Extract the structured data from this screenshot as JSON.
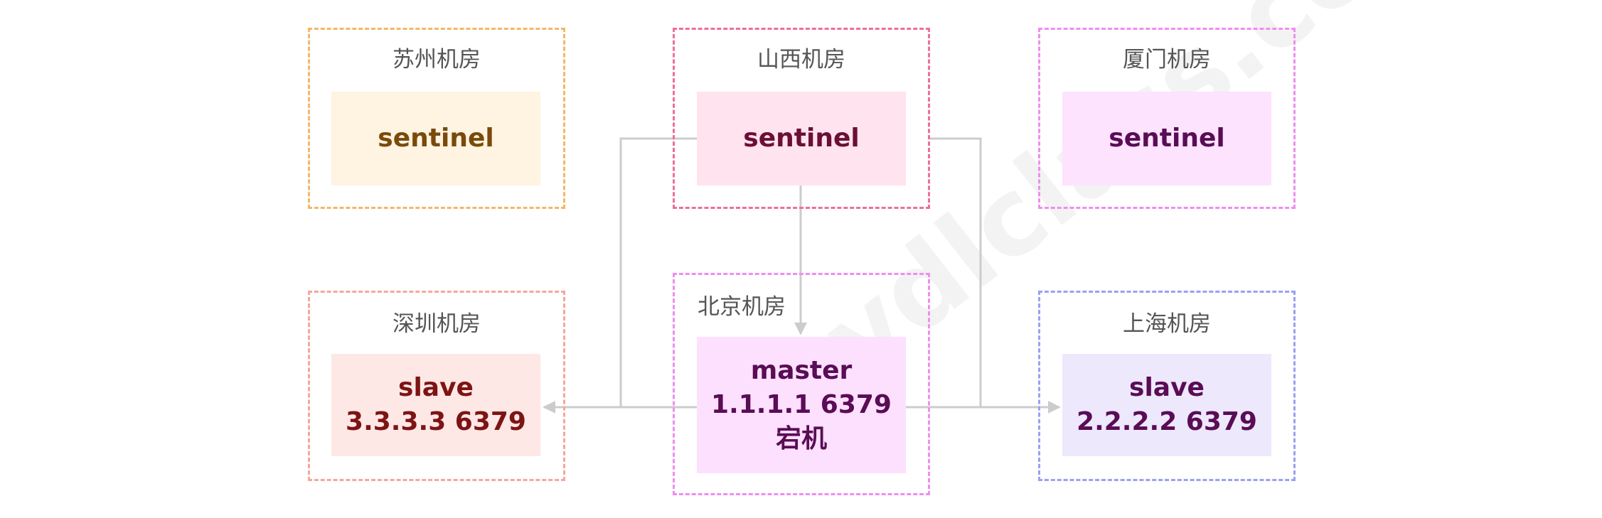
{
  "watermark": "ydlclass.com",
  "colors": {
    "connector": "#cccccc",
    "suzhou_border": "#f2b866",
    "suzhou_fill": "#fff3e2",
    "suzhou_text": "#7a4a0a",
    "shanxi_border": "#ec6f9c",
    "shanxi_fill": "#ffe3ee",
    "shanxi_text": "#6b0f35",
    "xiamen_border": "#ef8df0",
    "xiamen_fill": "#fde3fe",
    "xiamen_text": "#5a0c55",
    "shenzhen_border": "#f4a79c",
    "shenzhen_fill": "#fde8e6",
    "shenzhen_text": "#7d1414",
    "beijing_border": "#ef8df0",
    "beijing_fill": "#fde0fe",
    "beijing_text": "#5a0c55",
    "shanghai_border": "#9aa0f2",
    "shanghai_fill": "#ede8fc",
    "shanghai_text": "#5a0c55"
  },
  "datacenters": {
    "suzhou": {
      "title": "苏州机房",
      "node": {
        "line1": "sentinel"
      }
    },
    "shanxi": {
      "title": "山西机房",
      "node": {
        "line1": "sentinel"
      }
    },
    "xiamen": {
      "title": "厦门机房",
      "node": {
        "line1": "sentinel"
      }
    },
    "shenzhen": {
      "title": "深圳机房",
      "node": {
        "line1": "slave",
        "line2": "3.3.3.3 6379"
      }
    },
    "beijing": {
      "title": "北京机房",
      "node": {
        "line1": "master",
        "line2": "1.1.1.1 6379",
        "line3": "宕机"
      }
    },
    "shanghai": {
      "title": "上海机房",
      "node": {
        "line1": "slave",
        "line2": "2.2.2.2 6379"
      }
    }
  }
}
